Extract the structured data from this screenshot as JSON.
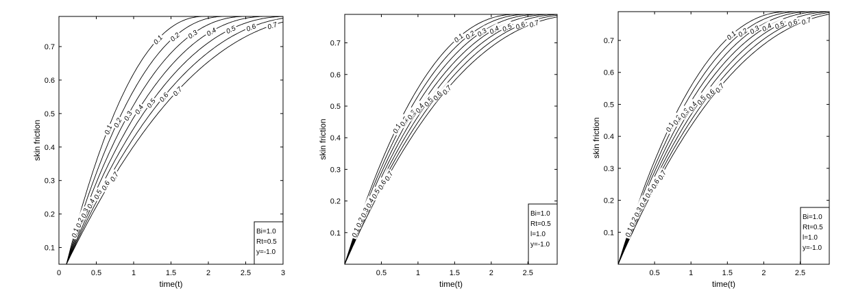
{
  "chart_data": [
    {
      "type": "line",
      "xlabel": "time(t)",
      "ylabel": "skin friction",
      "xlim": [
        0,
        3
      ],
      "ylim": [
        0.05,
        0.79
      ],
      "xticks": [
        0,
        0.5,
        1,
        1.5,
        2,
        2.5,
        3
      ],
      "xtick_labels": [
        "0",
        "0.5",
        "1",
        "1.5",
        "2",
        "2.5",
        "3"
      ],
      "yticks": [
        0.1,
        0.2,
        0.3,
        0.4,
        0.5,
        0.6,
        0.7
      ],
      "ytick_labels": [
        "0.1",
        "0.2",
        "0.3",
        "0.4",
        "0.5",
        "0.6",
        "0.7"
      ],
      "grid": false,
      "legend": {
        "position": "bottom-right",
        "lines": [
          "Bi=1.0",
          "Rt=0.5",
          "y=-1.0"
        ]
      },
      "curve_model": {
        "x0": 0.1,
        "y_start": 0.05,
        "y_end": 0.79,
        "base_span": 1.85,
        "span_step": 0.28
      },
      "series": [
        {
          "name": "0.1",
          "label_early": "0.1",
          "label_mid": "0.1",
          "label_late": "0.1"
        },
        {
          "name": "0.2",
          "label_early": "0.2",
          "label_mid": "0.2",
          "label_late": "0.2"
        },
        {
          "name": "0.3",
          "label_early": "0.3",
          "label_mid": "0.3",
          "label_late": "0.3"
        },
        {
          "name": "0.4",
          "label_early": "0.4",
          "label_mid": "0.4",
          "label_late": "0.4"
        },
        {
          "name": "0.5",
          "label_early": "0.5",
          "label_mid": "0.5",
          "label_late": "0.5"
        },
        {
          "name": "0.6",
          "label_early": "0.6",
          "label_mid": "0.6",
          "label_late": "0.6"
        },
        {
          "name": "0.7",
          "label_early": "0.7",
          "label_mid": "0.7",
          "label_late": "0.7"
        }
      ]
    },
    {
      "type": "line",
      "xlabel": "time(t)",
      "ylabel": "skin friction",
      "xlim": [
        0,
        2.9
      ],
      "ylim": [
        0,
        0.79
      ],
      "xticks": [
        0.5,
        1,
        1.5,
        2,
        2.5
      ],
      "xtick_labels": [
        "0.5",
        "1",
        "1.5",
        "2",
        "2.5"
      ],
      "yticks": [
        0.1,
        0.2,
        0.3,
        0.4,
        0.5,
        0.6,
        0.7
      ],
      "ytick_labels": [
        "0.1",
        "0.2",
        "0.3",
        "0.4",
        "0.5",
        "0.6",
        "0.7"
      ],
      "grid": false,
      "legend": {
        "position": "bottom-right",
        "lines": [
          "Bi=1.0",
          "Rt=0.5",
          "l=1.0",
          "y=-1.0"
        ]
      },
      "curve_model": {
        "x0": 0,
        "y_start": 0,
        "y_end": 0.79,
        "base_span": 2.35,
        "span_step": 0.16
      },
      "series": [
        {
          "name": "0.1",
          "label_early": "0.1",
          "label_mid": "0.1",
          "label_late": "0.1"
        },
        {
          "name": "0.2",
          "label_early": "0.2",
          "label_mid": "0.2",
          "label_late": "0.2"
        },
        {
          "name": "0.3",
          "label_early": "0.3",
          "label_mid": "0.3",
          "label_late": "0.3"
        },
        {
          "name": "0.4",
          "label_early": "0.4",
          "label_mid": "0.4",
          "label_late": "0.4"
        },
        {
          "name": "0.5",
          "label_early": "0.5",
          "label_mid": "0.5",
          "label_late": "0.5"
        },
        {
          "name": "0.6",
          "label_early": "0.6",
          "label_mid": "0.6",
          "label_late": "0.6"
        },
        {
          "name": "0.7",
          "label_early": "0.7",
          "label_mid": "0.7",
          "label_late": "0.7"
        }
      ]
    },
    {
      "type": "line",
      "xlabel": "time(t)",
      "ylabel": "skin friction",
      "xlim": [
        0,
        2.9
      ],
      "ylim": [
        0,
        0.79
      ],
      "xticks": [
        0.5,
        1,
        1.5,
        2,
        2.5
      ],
      "xtick_labels": [
        "0.5",
        "1",
        "1.5",
        "2",
        "2.5"
      ],
      "yticks": [
        0.1,
        0.2,
        0.3,
        0.4,
        0.5,
        0.6,
        0.7
      ],
      "ytick_labels": [
        "0.1",
        "0.2",
        "0.3",
        "0.4",
        "0.5",
        "0.6",
        "0.7"
      ],
      "grid": false,
      "legend": {
        "position": "bottom-right",
        "lines": [
          "Bi=1.0",
          "Rt=0.5",
          "l=1.0",
          "y=-1.0"
        ]
      },
      "curve_model": {
        "x0": 0,
        "y_start": 0,
        "y_end": 0.79,
        "base_span": 2.35,
        "span_step": 0.16
      },
      "series": [
        {
          "name": "0.1",
          "label_early": "0.1",
          "label_mid": "0.1",
          "label_late": "0.1"
        },
        {
          "name": "0.2",
          "label_early": "0.2",
          "label_mid": "0.2",
          "label_late": "0.2"
        },
        {
          "name": "0.3",
          "label_early": "0.3",
          "label_mid": "0.3",
          "label_late": "0.3"
        },
        {
          "name": "0.4",
          "label_early": "0.4",
          "label_mid": "0.4",
          "label_late": "0.4"
        },
        {
          "name": "0.5",
          "label_early": "0.5",
          "label_mid": "0.5",
          "label_late": "0.5"
        },
        {
          "name": "0.6",
          "label_early": "0.6",
          "label_mid": "0.6",
          "label_late": "0.6"
        },
        {
          "name": "0.7",
          "label_early": "0.7",
          "label_mid": "0.7",
          "label_late": "0.7"
        }
      ]
    }
  ]
}
